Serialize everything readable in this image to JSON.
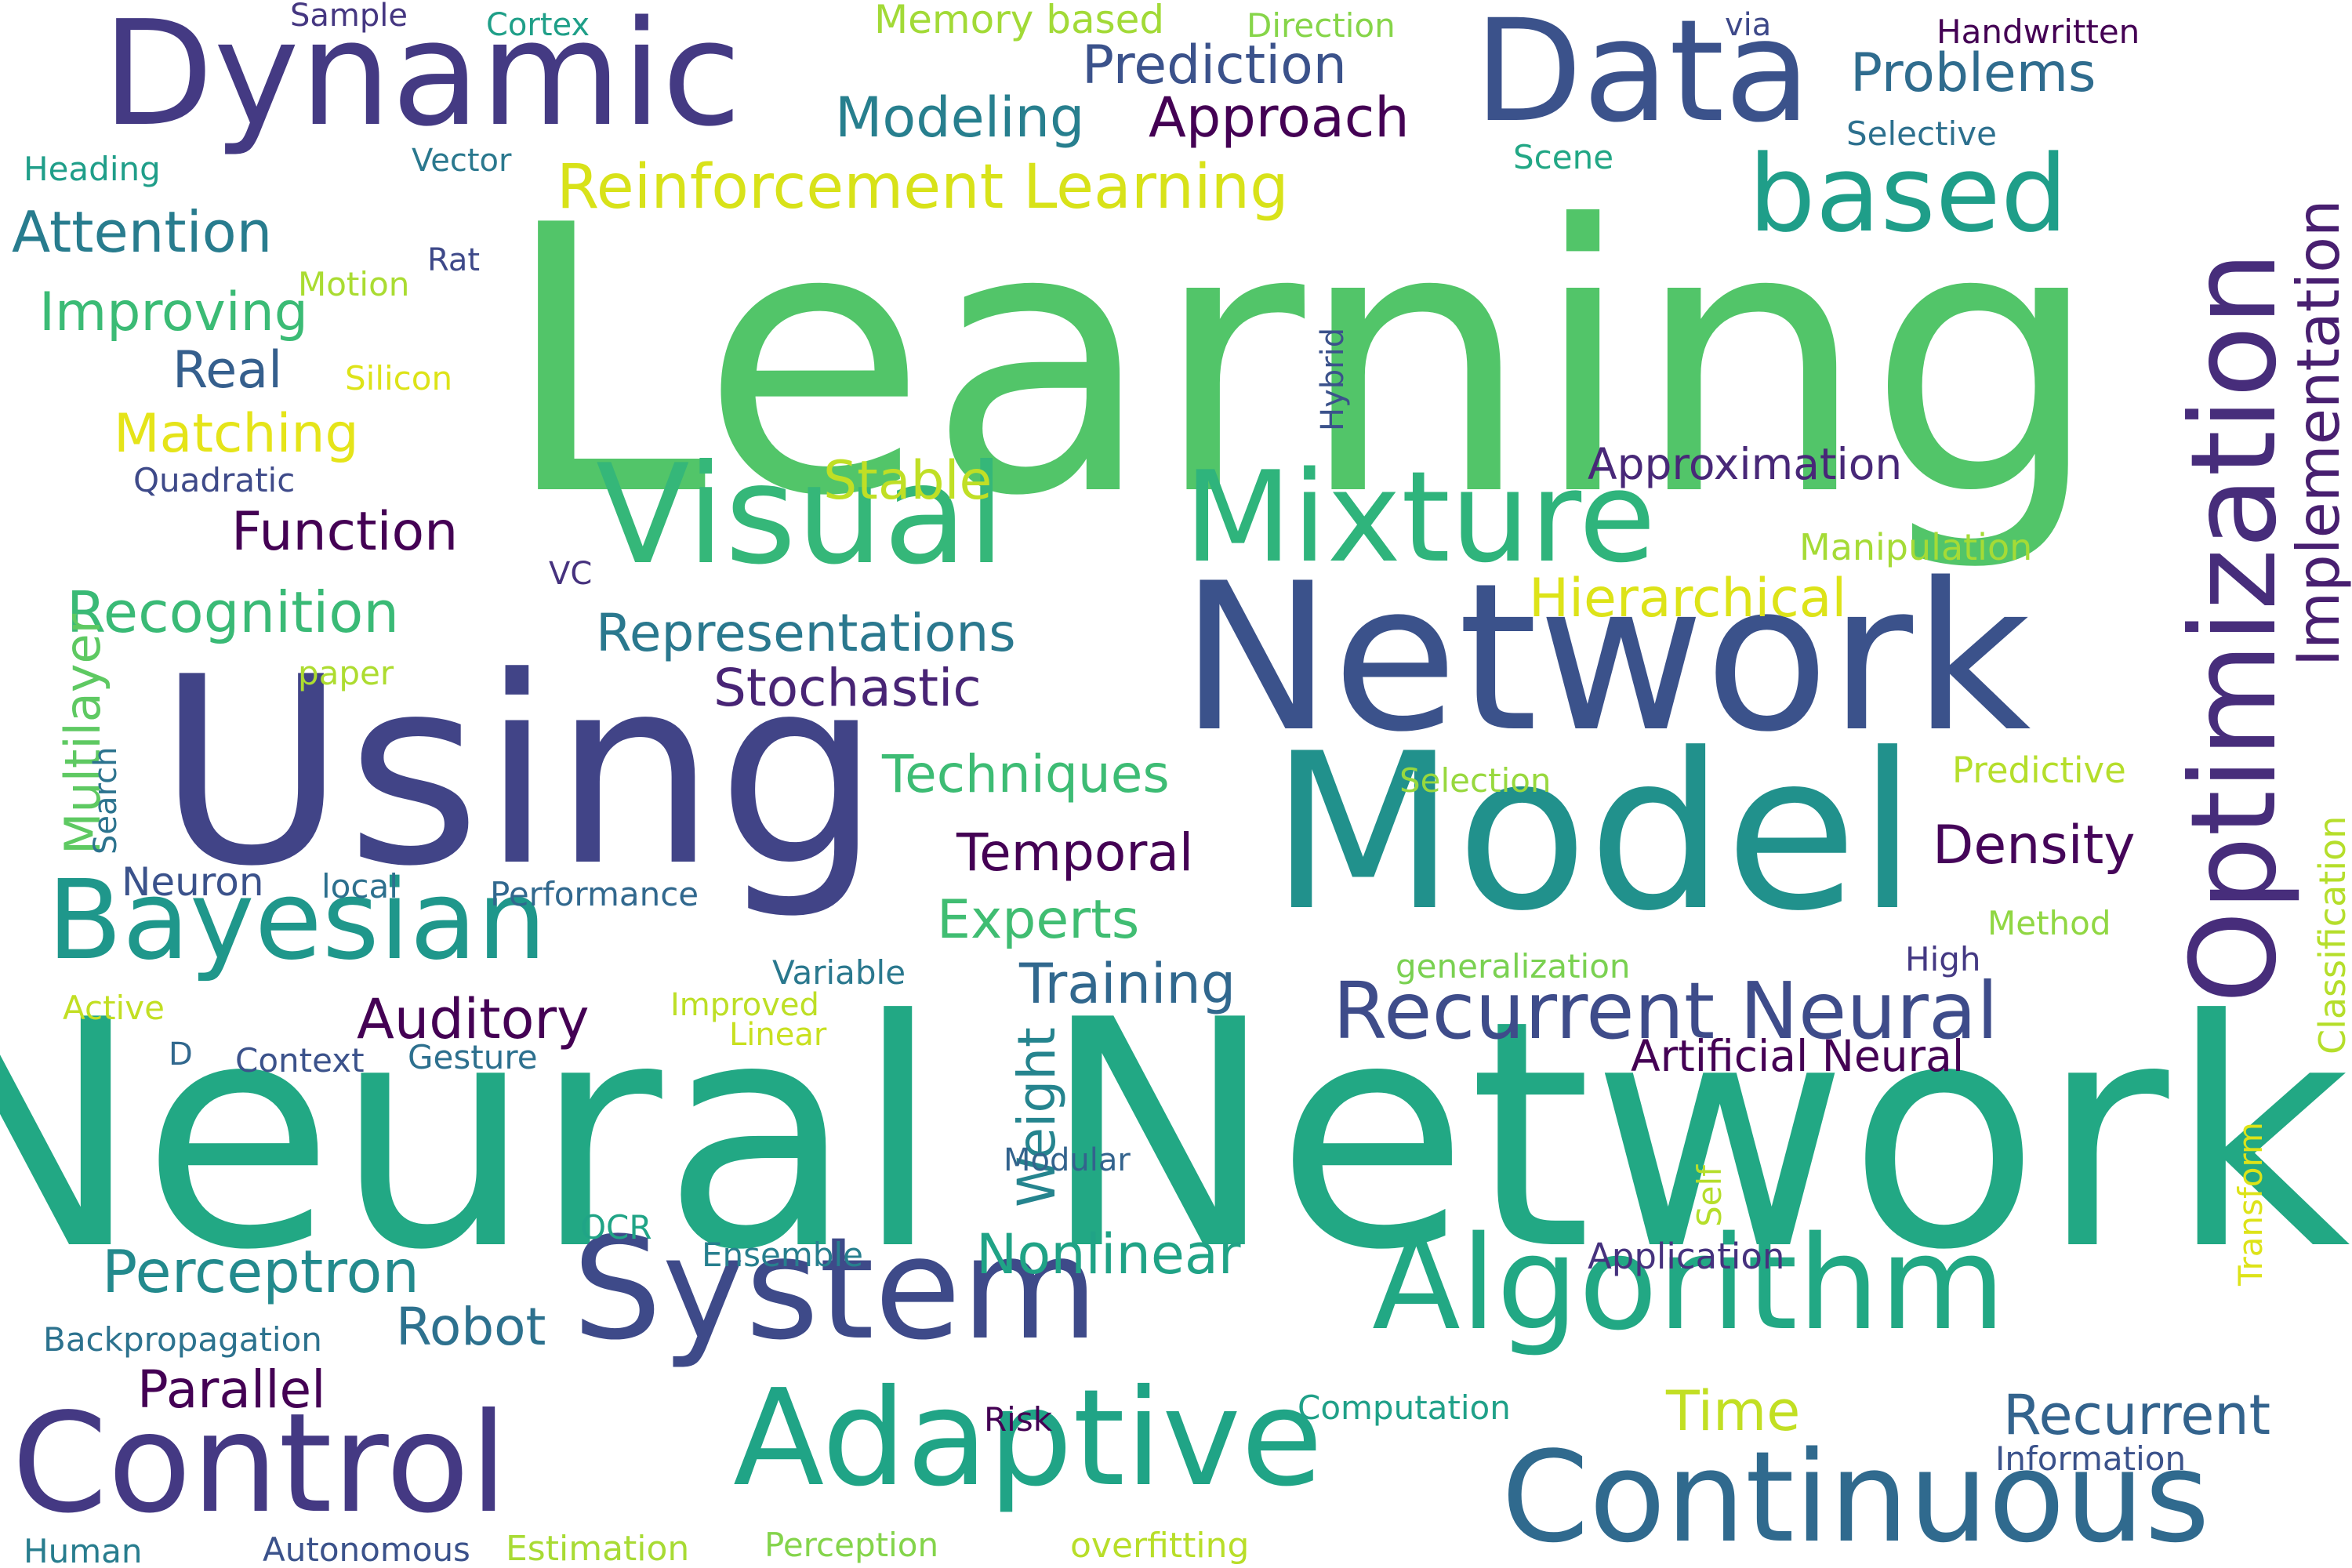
{
  "words": [
    {
      "text": "Learning",
      "color": "#52c569"
    },
    {
      "text": "Neural Network",
      "color": "#22a884"
    },
    {
      "text": "Network",
      "color": "#3b528b"
    },
    {
      "text": "Using",
      "color": "#414487"
    },
    {
      "text": "Model",
      "color": "#21918c"
    },
    {
      "text": "System",
      "color": "#3e4a89"
    },
    {
      "text": "Dynamic",
      "color": "#443a83"
    },
    {
      "text": "Data",
      "color": "#3b528b"
    },
    {
      "text": "Optimization",
      "color": "#472d7b"
    },
    {
      "text": "Algorithm",
      "color": "#22a884"
    },
    {
      "text": "Visual",
      "color": "#35b779"
    },
    {
      "text": "Mixture",
      "color": "#2fb47c"
    },
    {
      "text": "Adaptive",
      "color": "#20a486"
    },
    {
      "text": "Continuous",
      "color": "#306a8e"
    },
    {
      "text": "Control",
      "color": "#443983"
    },
    {
      "text": "Bayesian",
      "color": "#1f978b"
    },
    {
      "text": "based",
      "color": "#1f9e89"
    },
    {
      "text": "Reinforcement Learning",
      "color": "#d8e219"
    },
    {
      "text": "Implementation",
      "color": "#481f70"
    },
    {
      "text": "Recurrent Neural",
      "color": "#3e4c8a"
    },
    {
      "text": "Prediction",
      "color": "#3b528b"
    },
    {
      "text": "Problems",
      "color": "#2f6c8e"
    },
    {
      "text": "Modeling",
      "color": "#277f8e"
    },
    {
      "text": "Approach",
      "color": "#440154"
    },
    {
      "text": "Attention",
      "color": "#287c8e"
    },
    {
      "text": "Improving",
      "color": "#3bbb75"
    },
    {
      "text": "Real",
      "color": "#355f8d"
    },
    {
      "text": "Matching",
      "color": "#e5e419"
    },
    {
      "text": "Function",
      "color": "#440154"
    },
    {
      "text": "Recognition",
      "color": "#3aba76"
    },
    {
      "text": "Representations",
      "color": "#2a788e"
    },
    {
      "text": "Stochastic",
      "color": "#482475"
    },
    {
      "text": "Techniques",
      "color": "#3dbc74"
    },
    {
      "text": "Temporal",
      "color": "#440154"
    },
    {
      "text": "Density",
      "color": "#450559"
    },
    {
      "text": "Experts",
      "color": "#40bd72"
    },
    {
      "text": "Training",
      "color": "#31688e"
    },
    {
      "text": "Auditory",
      "color": "#440154"
    },
    {
      "text": "Weight",
      "color": "#25848e"
    },
    {
      "text": "Artificial Neural",
      "color": "#440154"
    },
    {
      "text": "Perceptron",
      "color": "#238a8d"
    },
    {
      "text": "Nonlinear",
      "color": "#20a386"
    },
    {
      "text": "Robot",
      "color": "#2d718e"
    },
    {
      "text": "Parallel",
      "color": "#440154"
    },
    {
      "text": "Recurrent",
      "color": "#33638d"
    },
    {
      "text": "Time",
      "color": "#c2df23"
    },
    {
      "text": "Hierarchical",
      "color": "#dde318"
    },
    {
      "text": "Stable",
      "color": "#c0df25"
    },
    {
      "text": "Approximation",
      "color": "#482878"
    },
    {
      "text": "Multilayer",
      "color": "#5ec962"
    },
    {
      "text": "Sample",
      "color": "#453781"
    },
    {
      "text": "Cortex",
      "color": "#1f9f88"
    },
    {
      "text": "Memory based",
      "color": "#a2da37"
    },
    {
      "text": "Direction",
      "color": "#86d549"
    },
    {
      "text": "via",
      "color": "#3e4989"
    },
    {
      "text": "Handwritten",
      "color": "#440154"
    },
    {
      "text": "Selective",
      "color": "#2d708e"
    },
    {
      "text": "Heading",
      "color": "#1f9e89"
    },
    {
      "text": "Vector",
      "color": "#2a788e"
    },
    {
      "text": "Scene",
      "color": "#22a785"
    },
    {
      "text": "Motion",
      "color": "#aadc32"
    },
    {
      "text": "Rat",
      "color": "#3e4989"
    },
    {
      "text": "Silicon",
      "color": "#dde318"
    },
    {
      "text": "Hybrid",
      "color": "#3b528b"
    },
    {
      "text": "Quadratic",
      "color": "#3e4a89"
    },
    {
      "text": "Manipulation",
      "color": "#a5db36"
    },
    {
      "text": "VC",
      "color": "#46327e"
    },
    {
      "text": "paper",
      "color": "#addc30"
    },
    {
      "text": "Search",
      "color": "#2c738e"
    },
    {
      "text": "Selection",
      "color": "#98d83e"
    },
    {
      "text": "Predictive",
      "color": "#b5de2b"
    },
    {
      "text": "Classification",
      "color": "#b5de2b"
    },
    {
      "text": "Neuron",
      "color": "#3b528b"
    },
    {
      "text": "local",
      "color": "#2d708e"
    },
    {
      "text": "Performance",
      "color": "#31688e"
    },
    {
      "text": "Method",
      "color": "#90d743"
    },
    {
      "text": "generalization",
      "color": "#7ad151"
    },
    {
      "text": "High",
      "color": "#443983"
    },
    {
      "text": "Variable",
      "color": "#2a788e"
    },
    {
      "text": "Active",
      "color": "#c2df23"
    },
    {
      "text": "Improved",
      "color": "#bddf26"
    },
    {
      "text": "Linear",
      "color": "#c8e020"
    },
    {
      "text": "D",
      "color": "#31688e"
    },
    {
      "text": "Context",
      "color": "#3b528b"
    },
    {
      "text": "Gesture",
      "color": "#2d708e"
    },
    {
      "text": "Modular",
      "color": "#33638d"
    },
    {
      "text": "Self",
      "color": "#b5de2b"
    },
    {
      "text": "Transform",
      "color": "#dde318"
    },
    {
      "text": "OCR",
      "color": "#20a486"
    },
    {
      "text": "Ensemble",
      "color": "#277f8e"
    },
    {
      "text": "Application",
      "color": "#46327e"
    },
    {
      "text": "Backpropagation",
      "color": "#2c728e"
    },
    {
      "text": "Risk",
      "color": "#440154"
    },
    {
      "text": "Computation",
      "color": "#1fa088"
    },
    {
      "text": "Information",
      "color": "#3b528b"
    },
    {
      "text": "Human",
      "color": "#287d8e"
    },
    {
      "text": "Autonomous",
      "color": "#3b528b"
    },
    {
      "text": "Estimation",
      "color": "#a8db34"
    },
    {
      "text": "Perception",
      "color": "#84d44b"
    },
    {
      "text": "overfitting",
      "color": "#b8de29"
    }
  ]
}
